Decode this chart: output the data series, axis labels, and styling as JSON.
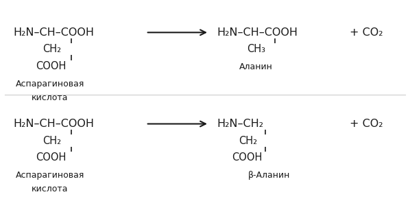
{
  "bg_color": "#ffffff",
  "text_color": "#1a1a1a",
  "fig_width": 5.98,
  "fig_height": 3.09,
  "dpi": 100,
  "reaction1": {
    "reactant_main": "H₂N–CH–COOH",
    "reactant_sub1": "CH₂",
    "reactant_sub2": "COOH",
    "reactant_label1": "Аспарагиновая",
    "reactant_label2": "кислота",
    "product_main": "H₂N–CH–COOH",
    "product_sub1": "CH₃",
    "product_label": "Аланин",
    "plus_co2": "+ CO₂"
  },
  "reaction2": {
    "reactant_main": "H₂N–CH–COOH",
    "reactant_sub1": "CH₂",
    "reactant_sub2": "COOH",
    "reactant_label1": "Аспарагиновая",
    "reactant_label2": "кислота",
    "product_main": "H₂N–CH₂",
    "product_sub1": "CH₂",
    "product_sub2": "COOH",
    "product_label": "β-Аланин",
    "plus_co2": "+ CO₂"
  }
}
